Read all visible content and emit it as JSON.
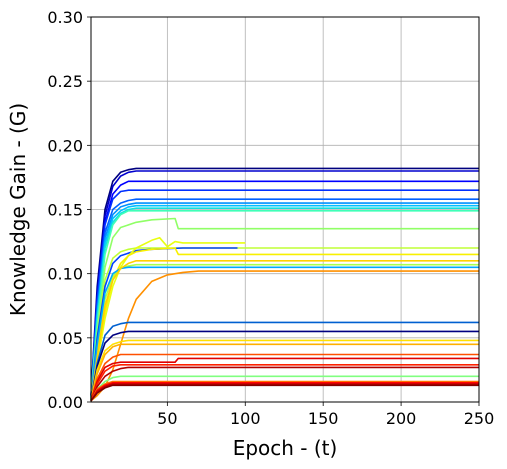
{
  "chart_data": {
    "type": "line",
    "title": "",
    "xlabel": "Epoch - (t)",
    "ylabel": "Knowledge Gain - (G)",
    "xlim": [
      1,
      250
    ],
    "ylim": [
      0,
      0.3
    ],
    "xticks": [
      50,
      100,
      150,
      200,
      250
    ],
    "xtick_labels": [
      "50",
      "100",
      "150",
      "200",
      "250"
    ],
    "yticks": [
      0.0,
      0.05,
      0.1,
      0.15,
      0.2,
      0.25,
      0.3
    ],
    "ytick_labels": [
      "0.00",
      "0.05",
      "0.10",
      "0.15",
      "0.20",
      "0.25",
      "0.30"
    ],
    "grid": true,
    "colormap": "jet",
    "series": [
      {
        "color": "#00007f",
        "x": [
          1,
          5,
          10,
          15,
          20,
          25,
          30,
          60,
          250
        ],
        "y": [
          0.005,
          0.09,
          0.15,
          0.172,
          0.179,
          0.181,
          0.182,
          0.182,
          0.182
        ]
      },
      {
        "color": "#0000cd",
        "x": [
          1,
          5,
          10,
          15,
          20,
          25,
          30,
          250
        ],
        "y": [
          0.004,
          0.085,
          0.145,
          0.168,
          0.176,
          0.179,
          0.18,
          0.18
        ]
      },
      {
        "color": "#0000ff",
        "x": [
          1,
          5,
          10,
          15,
          20,
          25,
          250
        ],
        "y": [
          0.004,
          0.08,
          0.14,
          0.162,
          0.169,
          0.172,
          0.172
        ]
      },
      {
        "color": "#0030ff",
        "x": [
          1,
          5,
          10,
          15,
          20,
          25,
          250
        ],
        "y": [
          0.004,
          0.08,
          0.138,
          0.158,
          0.164,
          0.165,
          0.165
        ]
      },
      {
        "color": "#0060ff",
        "x": [
          1,
          5,
          10,
          15,
          20,
          25,
          30,
          250
        ],
        "y": [
          0.003,
          0.075,
          0.132,
          0.15,
          0.155,
          0.157,
          0.158,
          0.158
        ]
      },
      {
        "color": "#0090ff",
        "x": [
          1,
          5,
          10,
          15,
          20,
          25,
          30,
          250
        ],
        "y": [
          0.003,
          0.07,
          0.128,
          0.146,
          0.152,
          0.154,
          0.155,
          0.155
        ]
      },
      {
        "color": "#00c0ff",
        "x": [
          1,
          5,
          10,
          15,
          20,
          25,
          30,
          250
        ],
        "y": [
          0.003,
          0.068,
          0.124,
          0.143,
          0.149,
          0.152,
          0.153,
          0.153
        ]
      },
      {
        "color": "#10e0e0",
        "x": [
          1,
          5,
          10,
          15,
          20,
          25,
          30,
          250
        ],
        "y": [
          0.003,
          0.065,
          0.12,
          0.14,
          0.147,
          0.15,
          0.151,
          0.151
        ]
      },
      {
        "color": "#40ffb8",
        "x": [
          1,
          5,
          10,
          15,
          20,
          25,
          250
        ],
        "y": [
          0.003,
          0.06,
          0.115,
          0.138,
          0.146,
          0.149,
          0.149
        ]
      },
      {
        "color": "#90ff66",
        "x": [
          1,
          5,
          10,
          15,
          20,
          30,
          40,
          55,
          57,
          60,
          250
        ],
        "y": [
          0.003,
          0.055,
          0.105,
          0.128,
          0.136,
          0.14,
          0.142,
          0.143,
          0.135,
          0.135,
          0.135
        ]
      },
      {
        "color": "#c0ff36",
        "x": [
          1,
          5,
          10,
          15,
          20,
          25,
          30,
          250
        ],
        "y": [
          0.002,
          0.05,
          0.095,
          0.112,
          0.117,
          0.119,
          0.12,
          0.12
        ]
      },
      {
        "color": "#0040ff",
        "x": [
          1,
          5,
          10,
          15,
          20,
          30,
          40,
          60,
          80,
          95
        ],
        "y": [
          0.002,
          0.05,
          0.09,
          0.108,
          0.114,
          0.118,
          0.119,
          0.12,
          0.12,
          0.12
        ]
      },
      {
        "color": "#e8ff10",
        "x": [
          1,
          5,
          10,
          15,
          20,
          25,
          30,
          40,
          45,
          50,
          55,
          60,
          70,
          80,
          100
        ],
        "y": [
          0.002,
          0.03,
          0.065,
          0.09,
          0.105,
          0.114,
          0.12,
          0.126,
          0.128,
          0.121,
          0.125,
          0.124,
          0.124,
          0.124,
          0.124
        ]
      },
      {
        "color": "#f8f000",
        "x": [
          1,
          5,
          10,
          15,
          20,
          25,
          30,
          40,
          55,
          57,
          60,
          250
        ],
        "y": [
          0.002,
          0.035,
          0.07,
          0.095,
          0.108,
          0.114,
          0.117,
          0.119,
          0.12,
          0.115,
          0.115,
          0.115
        ]
      },
      {
        "color": "#a8ff4e",
        "x": [
          1,
          5,
          10,
          15,
          20,
          25,
          30,
          250
        ],
        "y": [
          0.002,
          0.04,
          0.08,
          0.098,
          0.104,
          0.106,
          0.107,
          0.107
        ]
      },
      {
        "color": "#00a8ff",
        "x": [
          1,
          5,
          10,
          15,
          20,
          25,
          250
        ],
        "y": [
          0.002,
          0.045,
          0.085,
          0.1,
          0.104,
          0.105,
          0.105
        ]
      },
      {
        "color": "#ffd000",
        "x": [
          1,
          5,
          10,
          15,
          20,
          25,
          30,
          250
        ],
        "y": [
          0.002,
          0.035,
          0.075,
          0.095,
          0.104,
          0.108,
          0.11,
          0.11
        ]
      },
      {
        "color": "#ff9000",
        "x": [
          1,
          5,
          10,
          15,
          20,
          25,
          30,
          40,
          50,
          60,
          70,
          250
        ],
        "y": [
          0.001,
          0.005,
          0.012,
          0.025,
          0.045,
          0.065,
          0.08,
          0.094,
          0.099,
          0.101,
          0.102,
          0.102
        ]
      },
      {
        "color": "#0060d0",
        "x": [
          1,
          5,
          10,
          15,
          20,
          25,
          30,
          250
        ],
        "y": [
          0.001,
          0.03,
          0.052,
          0.059,
          0.061,
          0.062,
          0.062,
          0.062
        ]
      },
      {
        "color": "#000080",
        "x": [
          1,
          5,
          10,
          15,
          20,
          25,
          250
        ],
        "y": [
          0.001,
          0.028,
          0.046,
          0.052,
          0.054,
          0.055,
          0.055
        ]
      },
      {
        "color": "#ffe000",
        "x": [
          1,
          5,
          10,
          15,
          20,
          25,
          250
        ],
        "y": [
          0.001,
          0.025,
          0.04,
          0.045,
          0.047,
          0.048,
          0.048
        ]
      },
      {
        "color": "#ffb000",
        "x": [
          1,
          5,
          10,
          15,
          20,
          250
        ],
        "y": [
          0.001,
          0.022,
          0.037,
          0.043,
          0.045,
          0.045
        ]
      },
      {
        "color": "#ff5000",
        "x": [
          1,
          5,
          10,
          15,
          20,
          250
        ],
        "y": [
          0.001,
          0.018,
          0.03,
          0.035,
          0.037,
          0.037
        ]
      },
      {
        "color": "#e00000",
        "x": [
          1,
          5,
          10,
          15,
          20,
          55,
          57,
          60,
          250
        ],
        "y": [
          0.001,
          0.016,
          0.027,
          0.03,
          0.031,
          0.031,
          0.034,
          0.034,
          0.034
        ]
      },
      {
        "color": "#ff2000",
        "x": [
          1,
          5,
          10,
          15,
          20,
          250
        ],
        "y": [
          0.001,
          0.014,
          0.024,
          0.028,
          0.029,
          0.029
        ]
      },
      {
        "color": "#b00000",
        "x": [
          1,
          5,
          10,
          15,
          20,
          25,
          250
        ],
        "y": [
          0.001,
          0.012,
          0.02,
          0.024,
          0.026,
          0.027,
          0.027
        ]
      },
      {
        "color": "#80ff80",
        "x": [
          1,
          5,
          10,
          15,
          20,
          250
        ],
        "y": [
          0.001,
          0.01,
          0.016,
          0.019,
          0.02,
          0.02
        ]
      },
      {
        "color": "#ff7000",
        "x": [
          1,
          5,
          10,
          15,
          250
        ],
        "y": [
          0.001,
          0.01,
          0.014,
          0.016,
          0.016
        ]
      },
      {
        "color": "#ff0000",
        "x": [
          1,
          5,
          10,
          15,
          250
        ],
        "y": [
          0.001,
          0.009,
          0.013,
          0.015,
          0.015
        ]
      },
      {
        "color": "#c00000",
        "x": [
          1,
          5,
          10,
          15,
          250
        ],
        "y": [
          0.001,
          0.008,
          0.012,
          0.014,
          0.014
        ]
      },
      {
        "color": "#800000",
        "x": [
          1,
          5,
          10,
          15,
          250
        ],
        "y": [
          0.001,
          0.007,
          0.011,
          0.013,
          0.013
        ]
      }
    ]
  }
}
